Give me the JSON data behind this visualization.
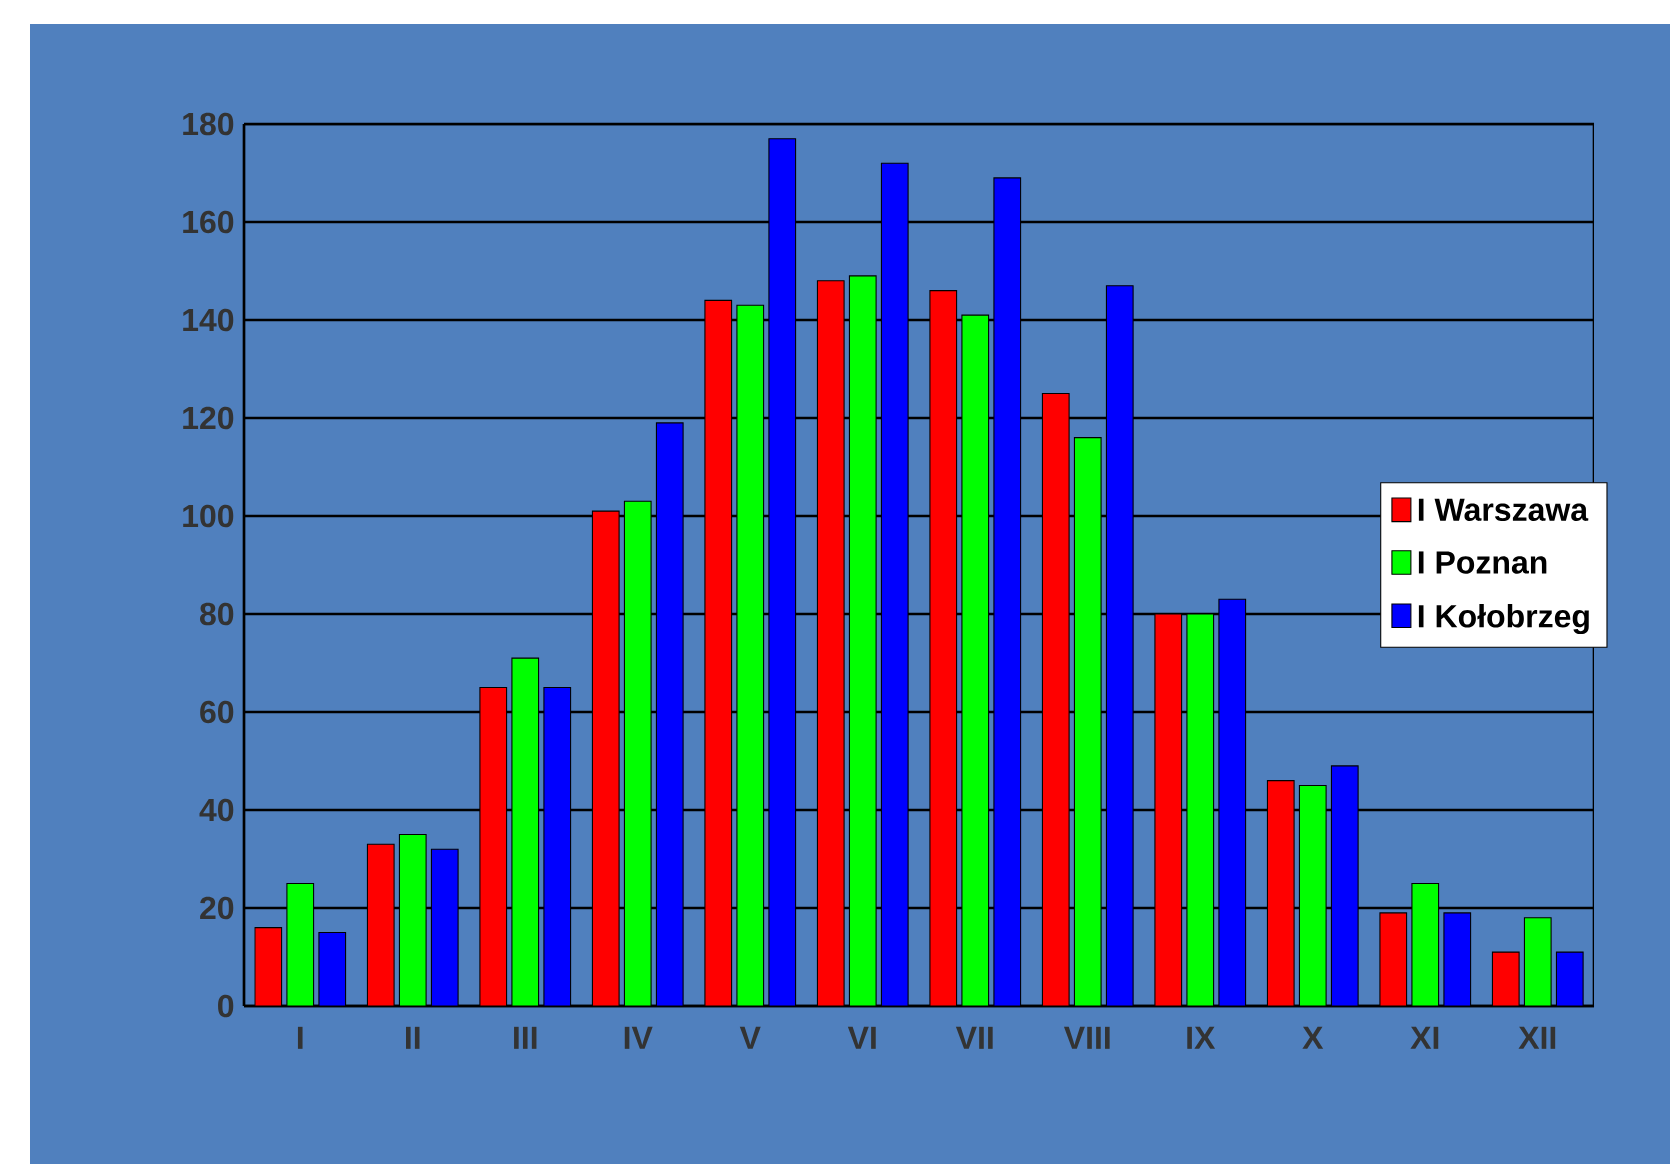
{
  "chart_data": {
    "type": "bar",
    "categories": [
      "I",
      "II",
      "III",
      "IV",
      "V",
      "VI",
      "VII",
      "VIII",
      "IX",
      "X",
      "XI",
      "XII"
    ],
    "series": [
      {
        "name": "I Warszawa",
        "color": "#ff0000",
        "values": [
          16,
          33,
          65,
          101,
          144,
          148,
          146,
          125,
          80,
          46,
          19,
          11
        ]
      },
      {
        "name": "I Poznan",
        "color": "#00ff00",
        "values": [
          25,
          35,
          71,
          103,
          143,
          149,
          141,
          116,
          80,
          45,
          25,
          18
        ]
      },
      {
        "name": "I Kołobrzeg",
        "color": "#0000ff",
        "values": [
          15,
          32,
          65,
          119,
          177,
          172,
          169,
          147,
          83,
          49,
          19,
          11
        ]
      }
    ],
    "ylim": [
      0,
      180
    ],
    "yticks": [
      0,
      20,
      40,
      60,
      80,
      100,
      120,
      140,
      160,
      180
    ],
    "grid": "y",
    "legend": "right"
  }
}
